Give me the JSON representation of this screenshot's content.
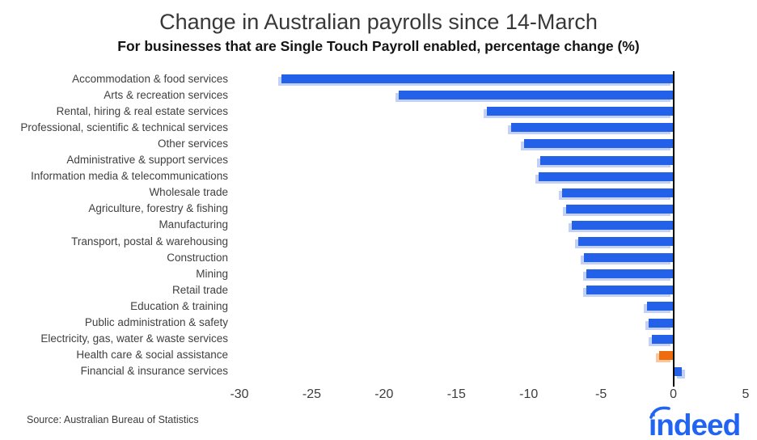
{
  "title": "Change in Australian payrolls since 14-March",
  "subtitle": "For businesses that are Single Touch Payroll enabled, percentage change (%)",
  "source": "Source: Australian Bureau of Statistics",
  "logo": {
    "text": "indeed",
    "color": "#2164f3"
  },
  "colors": {
    "bar_blue": "#2361e8",
    "bar_orange": "#ee6c0d",
    "shadow_blue": "#c2d1f5",
    "shadow_orange": "#f8c99f",
    "axis_line": "#000000",
    "label_text": "#404040"
  },
  "chart_data": {
    "type": "bar",
    "orientation": "horizontal",
    "title": "Change in Australian payrolls since 14-March",
    "subtitle": "For businesses that are Single Touch Payroll enabled, percentage change (%)",
    "xlabel": "",
    "ylabel": "",
    "xlim": [
      -30,
      5
    ],
    "xticks": [
      -30,
      -25,
      -20,
      -15,
      -10,
      -5,
      0,
      5
    ],
    "grid": false,
    "legend": false,
    "categories": [
      "Accommodation & food services",
      "Arts & recreation services",
      "Rental, hiring & real estate services",
      "Professional, scientific & technical services",
      "Other services",
      "Administrative & support services",
      "Information media & telecommunications",
      "Wholesale trade",
      "Agriculture, forestry & fishing",
      "Manufacturing",
      "Transport, postal & warehousing",
      "Construction",
      "Mining",
      "Retail trade",
      "Education & training",
      "Public administration & safety",
      "Electricity, gas, water & waste services",
      "Health care & social assistance",
      "Financial & insurance services"
    ],
    "values": [
      -27.1,
      -19.0,
      -12.9,
      -11.2,
      -10.3,
      -9.2,
      -9.3,
      -7.7,
      -7.4,
      -7.0,
      -6.6,
      -6.2,
      -6.0,
      -6.0,
      -1.8,
      -1.7,
      -1.5,
      -1.0,
      0.6
    ],
    "highlight_category": "Health care & social assistance",
    "bar_color": "#2361e8",
    "highlight_color": "#ee6c0d"
  }
}
